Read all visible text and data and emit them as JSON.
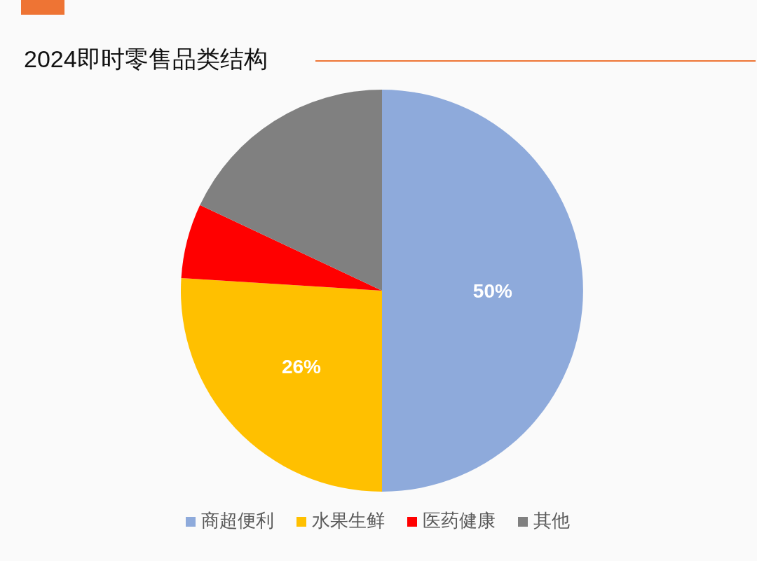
{
  "chart_data": {
    "type": "pie",
    "title": "2024即时零售品类结构",
    "categories": [
      "商超便利",
      "水果生鲜",
      "医药健康",
      "其他"
    ],
    "values": [
      50,
      26,
      6,
      18
    ],
    "colors": [
      "#8eaadb",
      "#ffc000",
      "#ff0000",
      "#808080"
    ],
    "value_labels": [
      "50%",
      "26%",
      null,
      null
    ],
    "legend": "bottom"
  }
}
